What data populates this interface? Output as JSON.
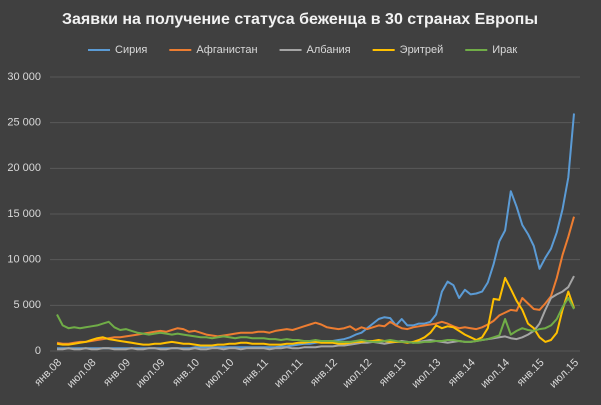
{
  "chart_data": {
    "type": "line",
    "title": "Заявки на получение статуса беженца в 30 странах Европы",
    "categories": [
      "янв.08",
      null,
      null,
      null,
      null,
      null,
      "июл.08",
      null,
      null,
      null,
      null,
      null,
      "янв.09",
      null,
      null,
      null,
      null,
      null,
      "июл.09",
      null,
      null,
      null,
      null,
      null,
      "янв.10",
      null,
      null,
      null,
      null,
      null,
      "июл.10",
      null,
      null,
      null,
      null,
      null,
      "янв.11",
      null,
      null,
      null,
      null,
      null,
      "июл.11",
      null,
      null,
      null,
      null,
      null,
      "янв.12",
      null,
      null,
      null,
      null,
      null,
      "июл.12",
      null,
      null,
      null,
      null,
      null,
      "янв.13",
      null,
      null,
      null,
      null,
      null,
      "июл.13",
      null,
      null,
      null,
      null,
      null,
      "янв.14",
      null,
      null,
      null,
      null,
      null,
      "июл.14",
      null,
      null,
      null,
      null,
      null,
      "янв.15",
      null,
      null,
      null,
      null,
      null,
      "июл.15"
    ],
    "series": [
      {
        "name": "Сирия",
        "color": "#5b9bd5",
        "values": [
          300,
          300,
          300,
          300,
          300,
          300,
          300,
          300,
          300,
          300,
          300,
          300,
          300,
          300,
          300,
          300,
          300,
          300,
          300,
          300,
          300,
          300,
          300,
          300,
          400,
          400,
          400,
          400,
          400,
          400,
          400,
          400,
          400,
          400,
          400,
          400,
          400,
          400,
          400,
          500,
          500,
          600,
          700,
          800,
          800,
          900,
          1000,
          1000,
          1100,
          1200,
          1300,
          1500,
          1800,
          2000,
          2500,
          3000,
          3500,
          3700,
          3600,
          2800,
          3500,
          2800,
          2800,
          3000,
          3000,
          3200,
          4000,
          6500,
          7600,
          7200,
          5800,
          6700,
          6200,
          6300,
          6500,
          7500,
          9500,
          12000,
          13200,
          17500,
          15800,
          13800,
          12800,
          11500,
          9000,
          10200,
          11200,
          13000,
          15500,
          19000,
          26000
        ]
      },
      {
        "name": "Афганистан",
        "color": "#ed7d31",
        "values": [
          900,
          800,
          800,
          900,
          1000,
          1000,
          1100,
          1200,
          1300,
          1400,
          1500,
          1500,
          1600,
          1700,
          1800,
          1900,
          2000,
          2100,
          2200,
          2100,
          2300,
          2500,
          2400,
          2100,
          2200,
          2000,
          1800,
          1700,
          1600,
          1700,
          1800,
          1900,
          2000,
          2000,
          2000,
          2100,
          2100,
          2000,
          2200,
          2300,
          2400,
          2300,
          2500,
          2700,
          2900,
          3100,
          2900,
          2600,
          2500,
          2400,
          2500,
          2700,
          2300,
          2600,
          2400,
          2600,
          2800,
          2700,
          3200,
          2800,
          2500,
          2400,
          2600,
          2700,
          2800,
          2900,
          3000,
          3200,
          3000,
          2700,
          2500,
          2600,
          2500,
          2400,
          2600,
          2900,
          3300,
          3900,
          4200,
          4500,
          4400,
          5800,
          5200,
          4600,
          4500,
          5200,
          6000,
          8000,
          10500,
          12500,
          14700
        ]
      },
      {
        "name": "Албания",
        "color": "#a5a5a5",
        "values": [
          200,
          200,
          300,
          200,
          200,
          300,
          200,
          200,
          300,
          300,
          200,
          200,
          200,
          300,
          200,
          200,
          300,
          300,
          200,
          200,
          300,
          300,
          200,
          200,
          300,
          200,
          200,
          300,
          300,
          200,
          300,
          300,
          200,
          300,
          300,
          300,
          300,
          200,
          300,
          300,
          400,
          300,
          300,
          400,
          400,
          400,
          500,
          500,
          500,
          600,
          600,
          700,
          800,
          900,
          900,
          1000,
          900,
          800,
          900,
          1000,
          1100,
          1000,
          900,
          1000,
          1100,
          1200,
          1100,
          1000,
          900,
          1000,
          1100,
          1000,
          1000,
          1100,
          1200,
          1300,
          1400,
          1500,
          1600,
          1400,
          1300,
          1500,
          1800,
          2200,
          3000,
          4500,
          5800,
          6200,
          6500,
          7000,
          8200
        ]
      },
      {
        "name": "Эритрей",
        "color": "#ffc000",
        "values": [
          800,
          700,
          700,
          800,
          900,
          1000,
          1200,
          1400,
          1500,
          1300,
          1200,
          1100,
          1000,
          900,
          800,
          700,
          700,
          800,
          800,
          900,
          1000,
          900,
          800,
          800,
          700,
          600,
          600,
          600,
          700,
          700,
          800,
          800,
          900,
          900,
          800,
          800,
          800,
          700,
          700,
          700,
          800,
          800,
          900,
          900,
          1000,
          1000,
          900,
          900,
          900,
          800,
          800,
          900,
          1000,
          1000,
          1100,
          1100,
          1200,
          1100,
          1000,
          1000,
          1000,
          900,
          1000,
          1200,
          1500,
          2000,
          2800,
          2500,
          2700,
          2600,
          2200,
          1800,
          1500,
          1200,
          1500,
          2500,
          5700,
          5600,
          8000,
          6800,
          5500,
          4500,
          3000,
          2500,
          1500,
          1000,
          1200,
          2000,
          4500,
          6500,
          4700
        ]
      },
      {
        "name": "Ирак",
        "color": "#70ad47",
        "values": [
          4000,
          2800,
          2500,
          2600,
          2500,
          2600,
          2700,
          2800,
          3000,
          3200,
          2600,
          2300,
          2400,
          2200,
          2000,
          1900,
          1800,
          1900,
          2000,
          1900,
          1800,
          1900,
          1800,
          1700,
          1600,
          1500,
          1500,
          1400,
          1500,
          1600,
          1500,
          1400,
          1500,
          1500,
          1400,
          1400,
          1400,
          1300,
          1300,
          1200,
          1300,
          1200,
          1200,
          1100,
          1100,
          1200,
          1100,
          1100,
          1100,
          1000,
          1000,
          1000,
          1100,
          1200,
          1100,
          1000,
          1000,
          1100,
          1200,
          1100,
          1000,
          1000,
          900,
          900,
          1000,
          1000,
          1100,
          1100,
          1200,
          1200,
          1100,
          1000,
          1000,
          1100,
          1200,
          1300,
          1500,
          1700,
          3500,
          1800,
          2200,
          2500,
          2300,
          2200,
          2400,
          2500,
          2800,
          3500,
          4800,
          5800,
          4600
        ]
      }
    ],
    "ylim": [
      0,
      30000
    ],
    "yticks": [
      0,
      {
        "value": 5000,
        "label": "5 000"
      },
      {
        "value": 10000,
        "label": "10 000"
      },
      {
        "value": 15000,
        "label": "15 000"
      },
      {
        "value": 20000,
        "label": "20 000"
      },
      {
        "value": 25000,
        "label": "25 000"
      },
      {
        "value": 30000,
        "label": "30 000"
      }
    ],
    "grid": true,
    "legend": "top"
  }
}
